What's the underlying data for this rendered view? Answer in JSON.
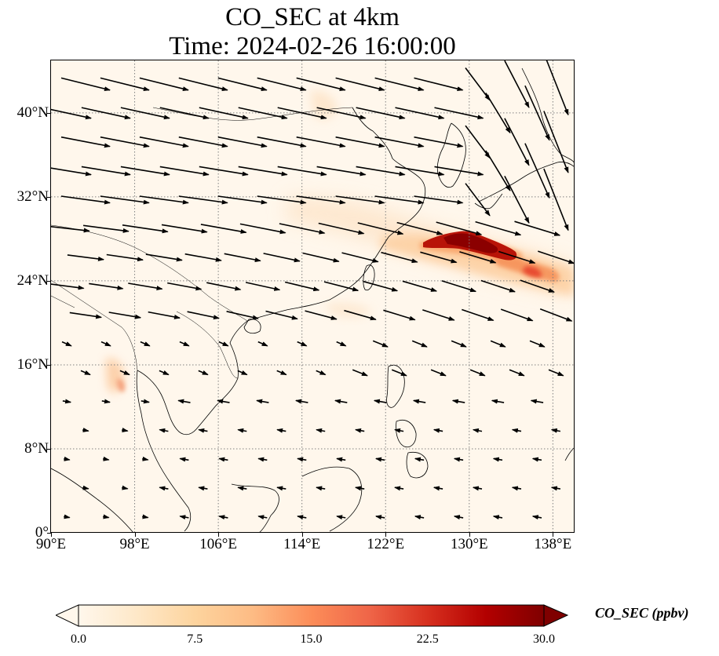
{
  "title": {
    "line1": "CO_SEC at 4km",
    "line2": "Time: 2024-02-26 16:00:00"
  },
  "map": {
    "lon_range": [
      90,
      140
    ],
    "lat_range": [
      0,
      45
    ],
    "lat_ticks": [
      {
        "value": 0,
        "label": "0°"
      },
      {
        "value": 8,
        "label": "8°N"
      },
      {
        "value": 16,
        "label": "16°N"
      },
      {
        "value": 24,
        "label": "24°N"
      },
      {
        "value": 32,
        "label": "32°N"
      },
      {
        "value": 40,
        "label": "40°N"
      }
    ],
    "lon_ticks": [
      {
        "value": 90,
        "label": "90°E"
      },
      {
        "value": 98,
        "label": "98°E"
      },
      {
        "value": 106,
        "label": "106°E"
      },
      {
        "value": 114,
        "label": "114°E"
      },
      {
        "value": 122,
        "label": "122°E"
      },
      {
        "value": 130,
        "label": "130°E"
      },
      {
        "value": 138,
        "label": "138°E"
      }
    ],
    "gridlines": "dotted",
    "field_colors": {
      "background": "#fff7ec",
      "light": "#fdd9b0",
      "mid": "#f4894b",
      "high": "#c91a0e",
      "peak": "#8b0000"
    },
    "wind_vector_color": "#000000"
  },
  "colorbar": {
    "label": "CO_SEC (ppbv)",
    "min": 0,
    "max": 30,
    "extend": "both",
    "ticks": [
      {
        "value": 0,
        "label": "0.0"
      },
      {
        "value": 7.5,
        "label": "7.5"
      },
      {
        "value": 15,
        "label": "15.0"
      },
      {
        "value": 22.5,
        "label": "22.5"
      },
      {
        "value": 30,
        "label": "30.0"
      }
    ],
    "colormap_stops": [
      "#fff7ec",
      "#fee8c8",
      "#fdd49e",
      "#fdbb84",
      "#fc8d59",
      "#ef6548",
      "#d7301f",
      "#b30000",
      "#7f0000"
    ]
  }
}
